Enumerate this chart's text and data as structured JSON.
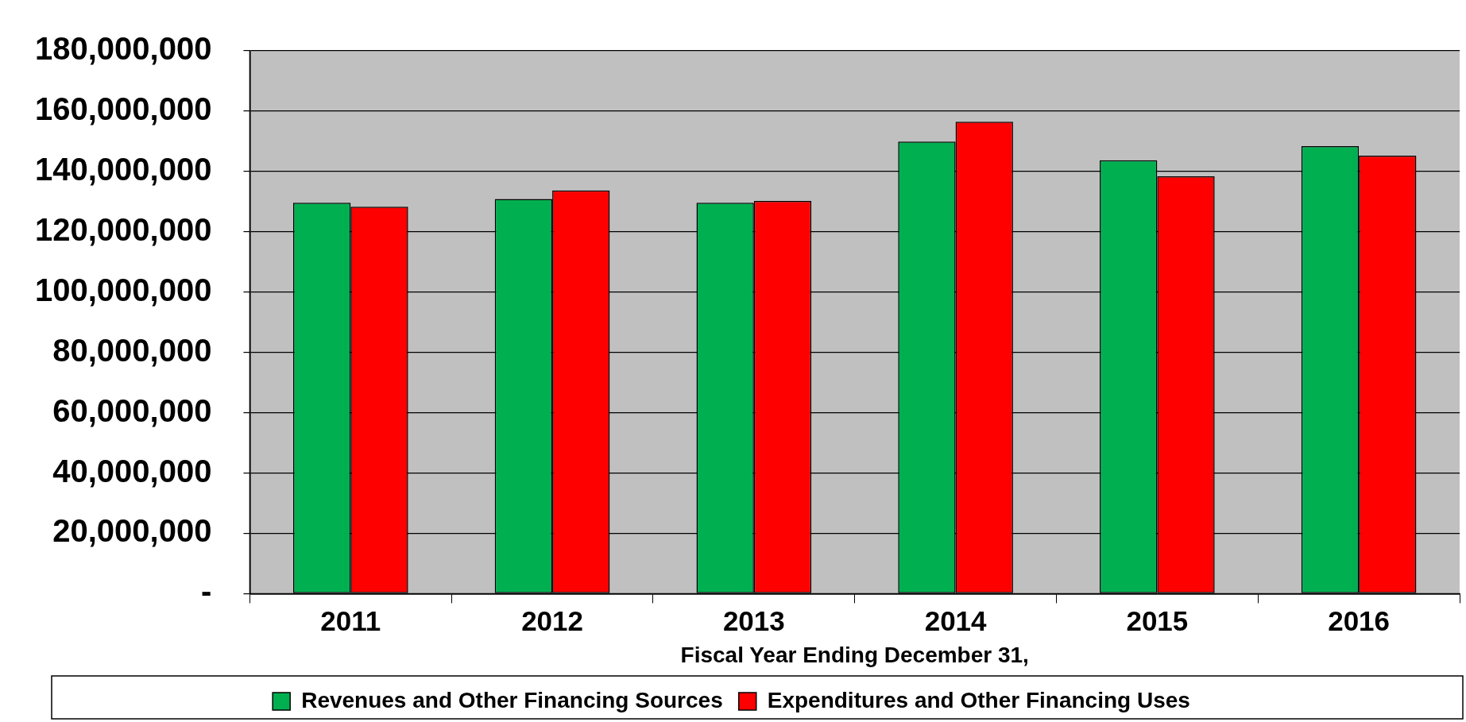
{
  "chart_data": {
    "type": "bar",
    "xlabel": "Fiscal Year Ending December 31,",
    "categories": [
      "2011",
      "2012",
      "2013",
      "2014",
      "2015",
      "2016"
    ],
    "series": [
      {
        "name": "Revenues and Other Financing Sources",
        "color": "#00b050",
        "values": [
          129600000,
          130900000,
          129600000,
          149900000,
          143700000,
          148400000
        ]
      },
      {
        "name": "Expenditures and Other Financing Uses",
        "color": "#ff0000",
        "values": [
          128300000,
          133700000,
          130200000,
          156500000,
          138400000,
          145200000
        ]
      }
    ],
    "ylim": [
      0,
      180000000
    ],
    "yticks": [
      {
        "value": 0,
        "label": "-"
      },
      {
        "value": 20000000,
        "label": "20,000,000"
      },
      {
        "value": 40000000,
        "label": "40,000,000"
      },
      {
        "value": 60000000,
        "label": "60,000,000"
      },
      {
        "value": 80000000,
        "label": "80,000,000"
      },
      {
        "value": 100000000,
        "label": "100,000,000"
      },
      {
        "value": 120000000,
        "label": "120,000,000"
      },
      {
        "value": 140000000,
        "label": "140,000,000"
      },
      {
        "value": 160000000,
        "label": "160,000,000"
      },
      {
        "value": 180000000,
        "label": "180,000,000"
      }
    ],
    "grid": "y",
    "legend": "bottom"
  }
}
